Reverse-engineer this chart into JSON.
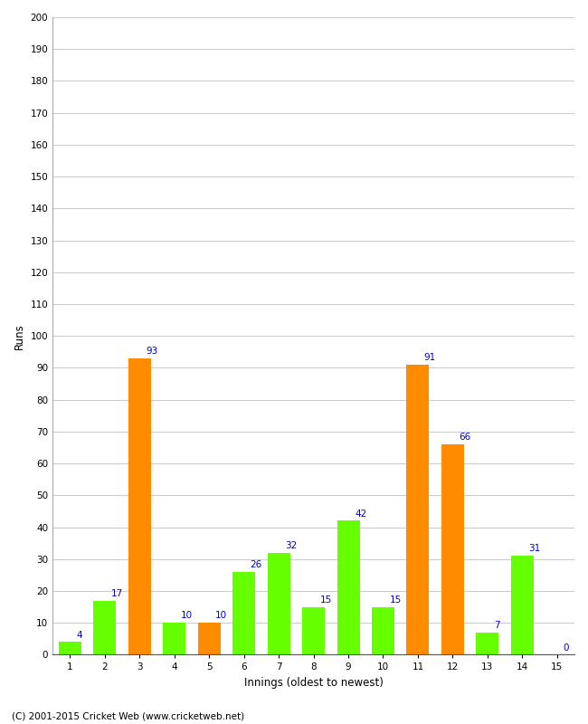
{
  "innings": [
    1,
    2,
    3,
    4,
    5,
    6,
    7,
    8,
    9,
    10,
    11,
    12,
    13,
    14,
    15
  ],
  "runs": [
    4,
    17,
    93,
    10,
    10,
    26,
    32,
    15,
    42,
    15,
    91,
    66,
    7,
    31,
    0
  ],
  "colors": [
    "#66ff00",
    "#66ff00",
    "#ff8c00",
    "#66ff00",
    "#ff8c00",
    "#66ff00",
    "#66ff00",
    "#66ff00",
    "#66ff00",
    "#66ff00",
    "#ff8c00",
    "#ff8c00",
    "#66ff00",
    "#66ff00",
    "#66ff00"
  ],
  "xlabel": "Innings (oldest to newest)",
  "ylabel": "Runs",
  "ylim": [
    0,
    200
  ],
  "yticks": [
    0,
    10,
    20,
    30,
    40,
    50,
    60,
    70,
    80,
    90,
    100,
    110,
    120,
    130,
    140,
    150,
    160,
    170,
    180,
    190,
    200
  ],
  "annotation_color": "#0000cc",
  "background_color": "#ffffff",
  "grid_color": "#cccccc",
  "footer": "(C) 2001-2015 Cricket Web (www.cricketweb.net)",
  "fig_width": 6.5,
  "fig_height": 8.0,
  "dpi": 100
}
